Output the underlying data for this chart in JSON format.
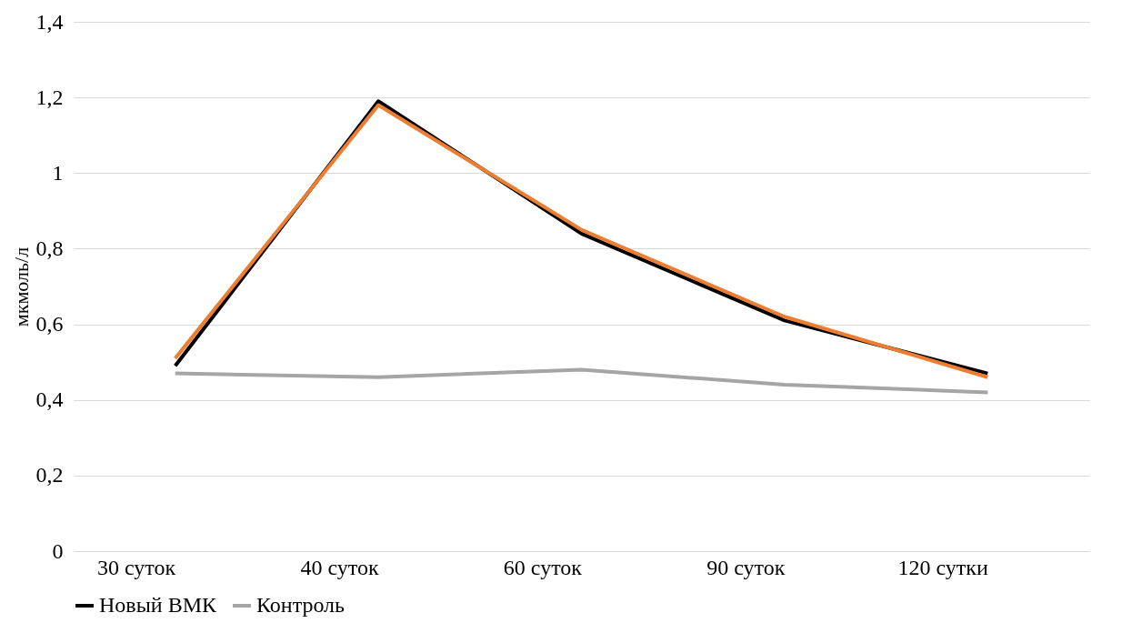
{
  "chart_data": {
    "type": "line",
    "ylabel": "мкмоль/л",
    "categories": [
      "30 суток",
      "40 суток",
      "60 суток",
      "90 суток",
      "120 сутки"
    ],
    "series": [
      {
        "name": "Новый ВМК",
        "color": "#000000",
        "values": [
          0.49,
          1.19,
          0.84,
          0.61,
          0.47
        ]
      },
      {
        "color": "#ed7d31",
        "values": [
          0.51,
          1.18,
          0.85,
          0.62,
          0.46
        ]
      },
      {
        "name": "Контроль",
        "color": "#a5a5a5",
        "values": [
          0.47,
          0.46,
          0.48,
          0.44,
          0.42
        ]
      }
    ],
    "ylim": [
      0,
      1.4
    ],
    "yticks": [
      0,
      {
        "value": 0.2,
        "label": "0,2"
      },
      {
        "value": 0.4,
        "label": "0,4"
      },
      {
        "value": 0.6,
        "label": "0,6"
      },
      {
        "value": 0.8,
        "label": "0,8"
      },
      1,
      {
        "value": 1.2,
        "label": "1,2"
      },
      {
        "value": 1.4,
        "label": "1,4"
      }
    ],
    "grid": "y",
    "legend": "bottom",
    "marker": "none",
    "line_style": "solid"
  }
}
